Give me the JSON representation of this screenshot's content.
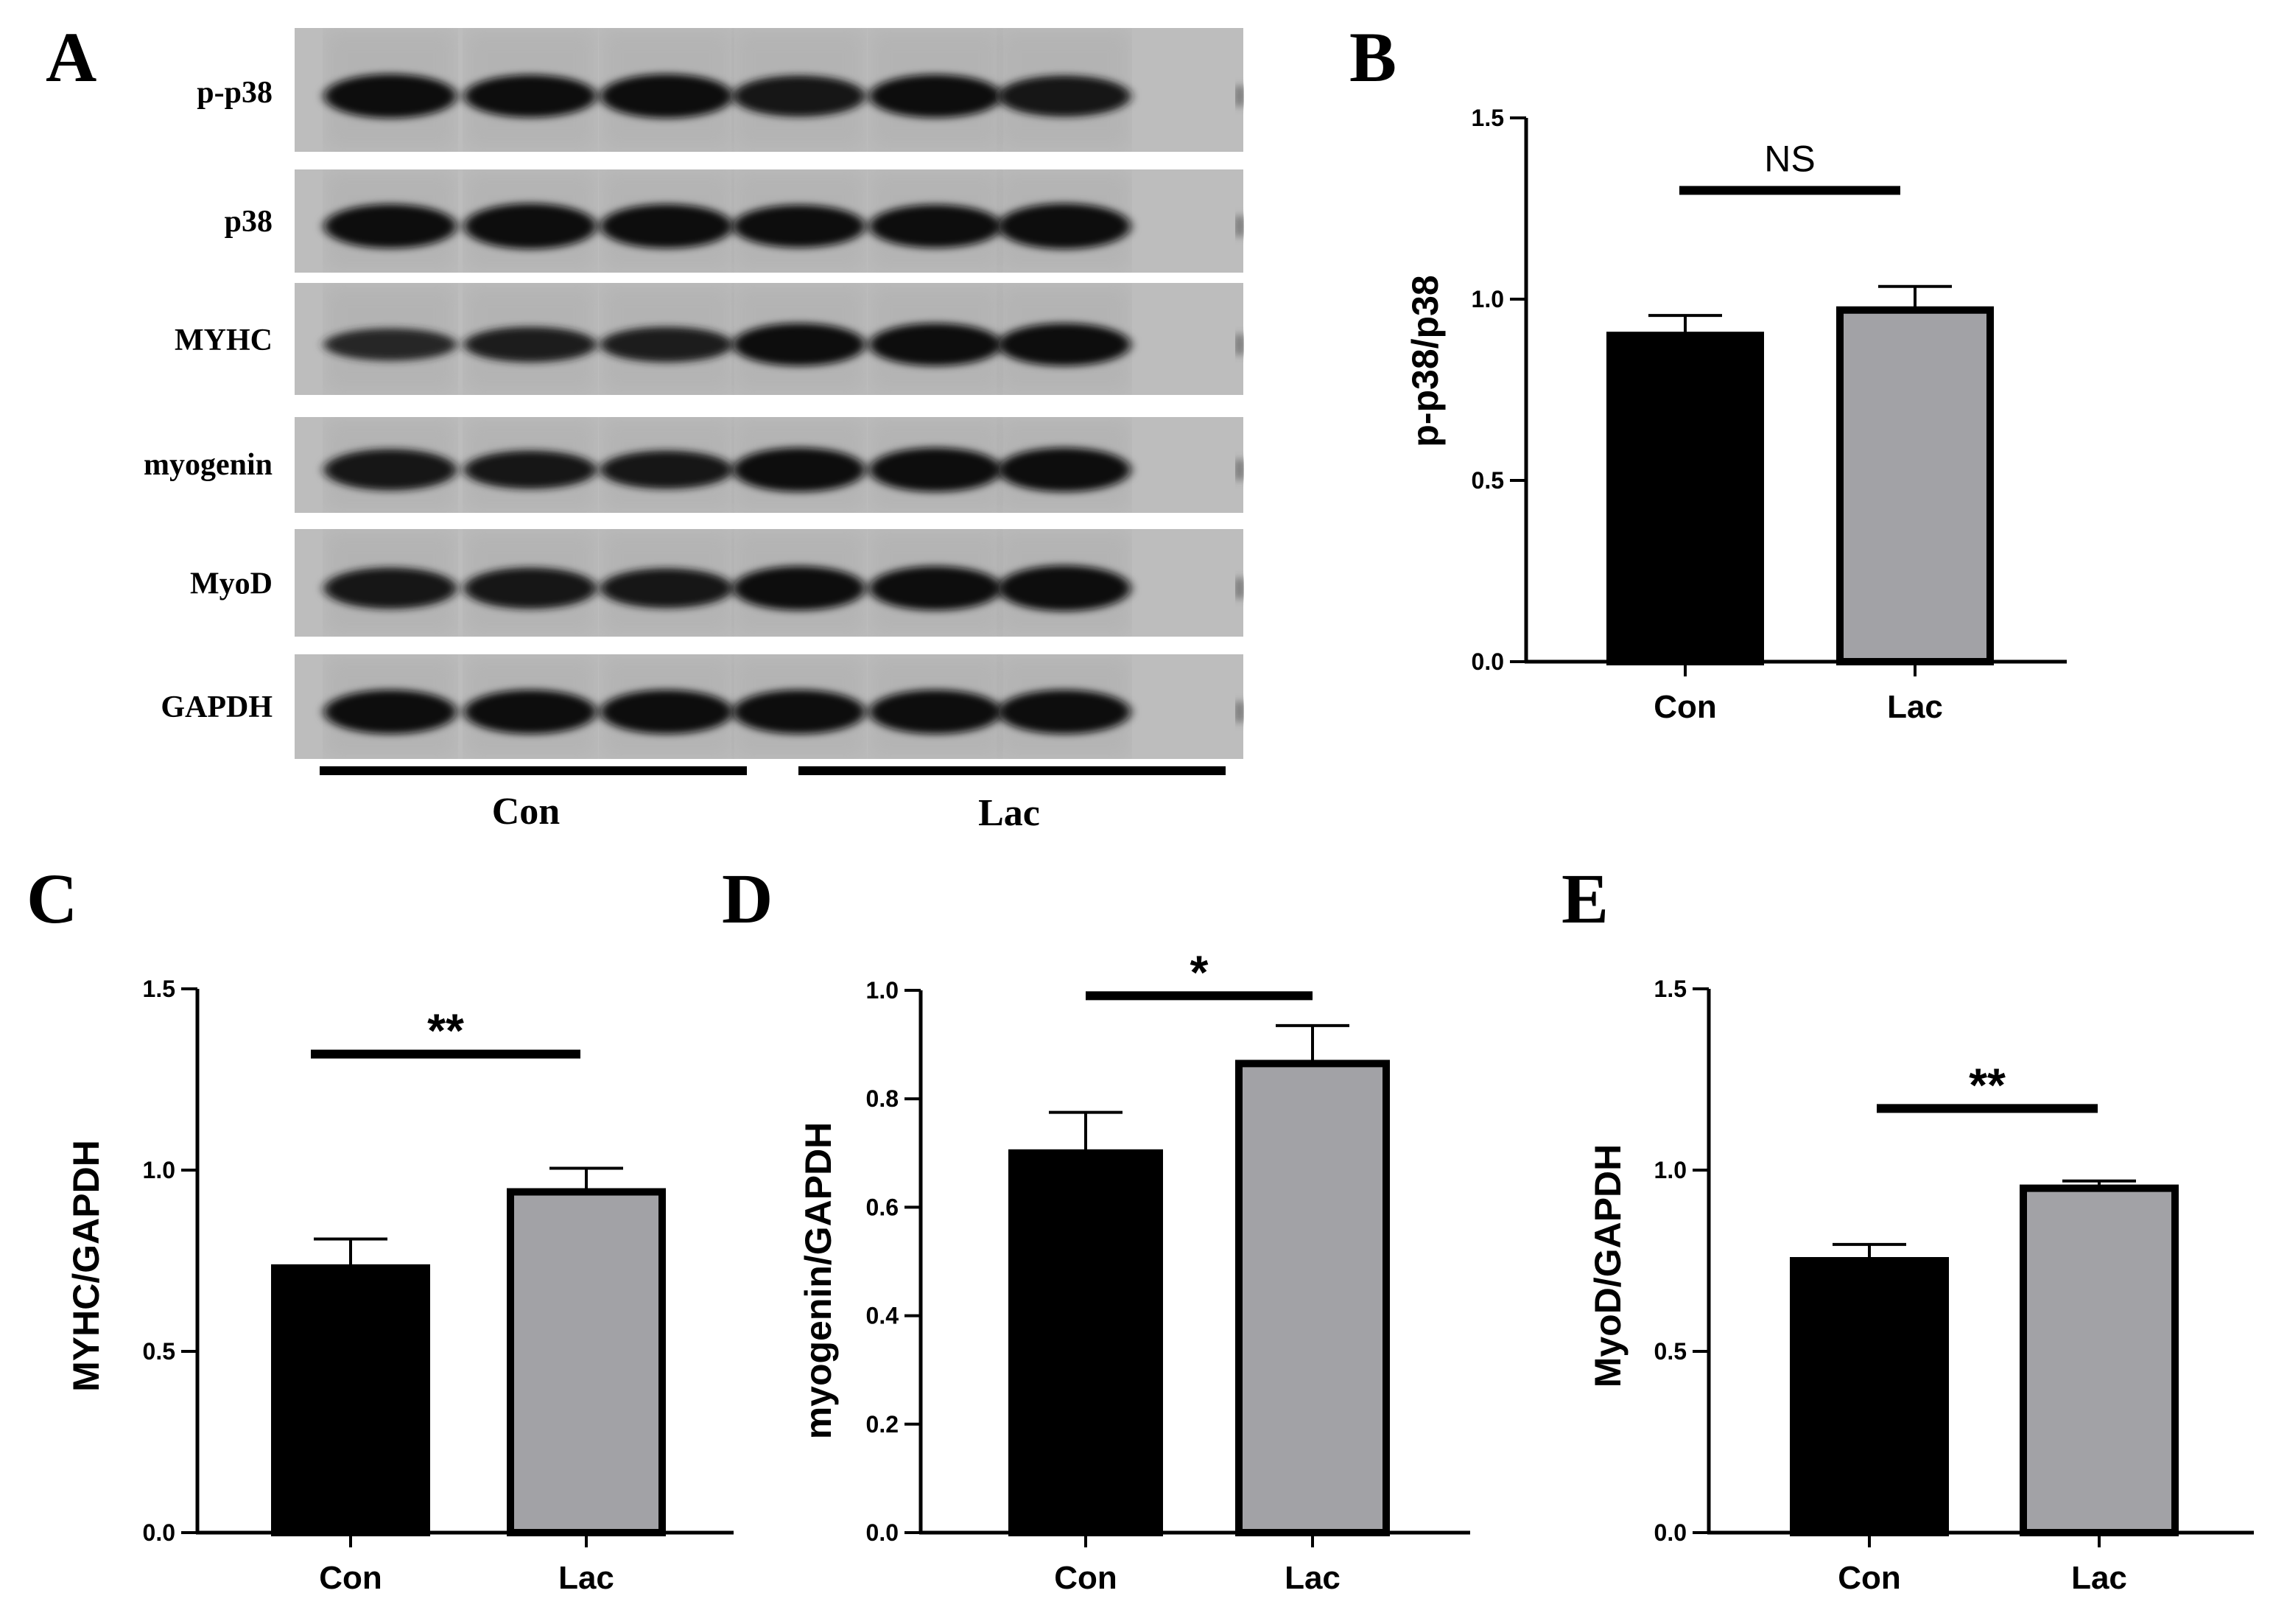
{
  "figure": {
    "panel_letters": [
      "A",
      "B",
      "C",
      "D",
      "E"
    ],
    "blot": {
      "rows": [
        {
          "label": "p-p38",
          "intensities": [
            0.95,
            0.9,
            0.95,
            0.85,
            0.92,
            0.85
          ]
        },
        {
          "label": "p38",
          "intensities": [
            0.95,
            1.0,
            0.95,
            0.9,
            0.92,
            1.0
          ]
        },
        {
          "label": "MYHC",
          "intensities": [
            0.55,
            0.65,
            0.65,
            0.9,
            0.9,
            0.9
          ]
        },
        {
          "label": "myogenin",
          "intensities": [
            0.85,
            0.75,
            0.75,
            0.95,
            0.95,
            0.95
          ]
        },
        {
          "label": "MyoD",
          "intensities": [
            0.85,
            0.85,
            0.8,
            0.95,
            0.95,
            1.0
          ]
        },
        {
          "label": "GAPDH",
          "intensities": [
            0.95,
            0.95,
            0.95,
            0.95,
            0.95,
            0.95
          ]
        }
      ],
      "groups": [
        "Con",
        "Lac"
      ]
    }
  },
  "chart_data": [
    {
      "panel": "B",
      "type": "bar",
      "categories": [
        "Con",
        "Lac"
      ],
      "values": [
        0.9,
        0.97
      ],
      "errors": [
        0.055,
        0.065
      ],
      "bar_colors": [
        "#000000",
        "#a2a2a6"
      ],
      "ylabel": "p-p38/p38",
      "xlabel": "",
      "ylim": [
        0,
        1.5
      ],
      "ticks": [
        "0.0",
        "0.5",
        "1.0",
        "1.5"
      ],
      "significance": {
        "label": "NS",
        "level": 1.3
      },
      "grid": false
    },
    {
      "panel": "C",
      "type": "bar",
      "categories": [
        "Con",
        "Lac"
      ],
      "values": [
        0.73,
        0.94
      ],
      "errors": [
        0.08,
        0.065
      ],
      "bar_colors": [
        "#000000",
        "#a2a2a6"
      ],
      "ylabel": "MYHC/GAPDH",
      "xlabel": "",
      "ylim": [
        0,
        1.5
      ],
      "ticks": [
        "0.0",
        "0.5",
        "1.0",
        "1.5"
      ],
      "significance": {
        "label": "**",
        "level": 1.32
      },
      "grid": false
    },
    {
      "panel": "D",
      "type": "bar",
      "categories": [
        "Con",
        "Lac"
      ],
      "values": [
        0.7,
        0.865
      ],
      "errors": [
        0.075,
        0.07
      ],
      "bar_colors": [
        "#000000",
        "#a2a2a6"
      ],
      "ylabel": "myogenin/GAPDH",
      "xlabel": "",
      "ylim": [
        0,
        1.0
      ],
      "ticks": [
        "0.0",
        "0.2",
        "0.4",
        "0.6",
        "0.8",
        "1.0"
      ],
      "significance": {
        "label": "*",
        "level": 0.99
      },
      "grid": false
    },
    {
      "panel": "E",
      "type": "bar",
      "categories": [
        "Con",
        "Lac"
      ],
      "values": [
        0.75,
        0.95
      ],
      "errors": [
        0.045,
        0.02
      ],
      "bar_colors": [
        "#000000",
        "#a2a2a6"
      ],
      "ylabel": "MyoD/GAPDH",
      "xlabel": "",
      "ylim": [
        0,
        1.5
      ],
      "ticks": [
        "0.0",
        "0.5",
        "1.0",
        "1.5"
      ],
      "significance": {
        "label": "**",
        "level": 1.17
      },
      "grid": false
    }
  ]
}
